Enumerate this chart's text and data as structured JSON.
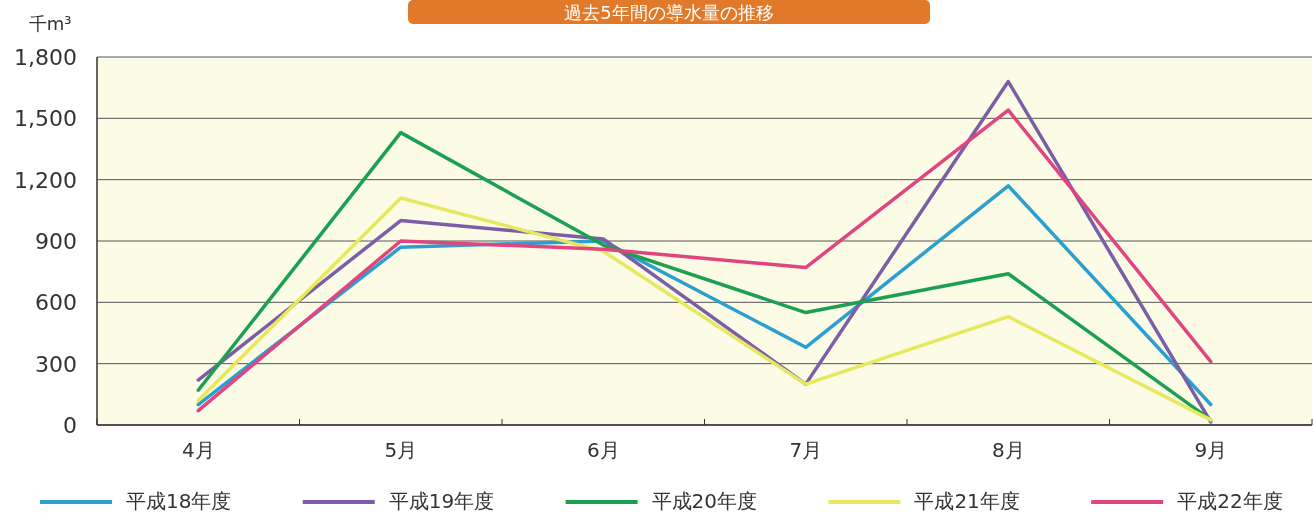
{
  "chart_data": {
    "type": "line",
    "title": "過去5年間の導水量の推移",
    "ylabel": "千m³",
    "categories": [
      "4月",
      "5月",
      "6月",
      "7月",
      "8月",
      "9月"
    ],
    "series": [
      {
        "name": "平成18年度",
        "color": "#2a9fd0",
        "values": [
          100,
          870,
          900,
          380,
          1170,
          100
        ]
      },
      {
        "name": "平成19年度",
        "color": "#7b5ea7",
        "values": [
          220,
          1000,
          910,
          200,
          1680,
          15
        ]
      },
      {
        "name": "平成20年度",
        "color": "#1aa050",
        "values": [
          170,
          1430,
          880,
          550,
          740,
          25
        ]
      },
      {
        "name": "平成21年度",
        "color": "#e8e860",
        "values": [
          120,
          1110,
          850,
          200,
          530,
          25
        ]
      },
      {
        "name": "平成22年度",
        "color": "#e0457f",
        "values": [
          70,
          900,
          860,
          770,
          1540,
          310
        ]
      }
    ],
    "ylim": [
      0,
      1800
    ],
    "yticks": [
      0,
      300,
      600,
      900,
      {
        "value": 1200,
        "label": "1,200"
      },
      {
        "value": 1500,
        "label": "1,500"
      },
      {
        "value": 1800,
        "label": "1,800"
      }
    ],
    "grid": "y",
    "legend": "bottom"
  }
}
